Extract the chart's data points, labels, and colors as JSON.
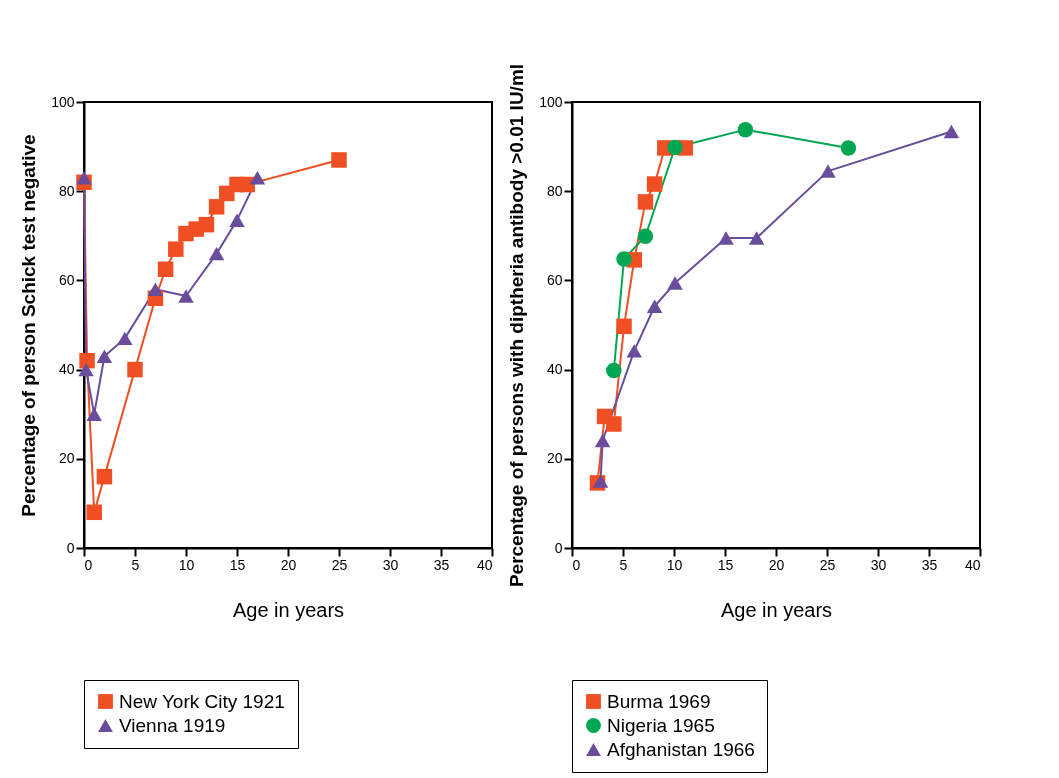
{
  "chart_data": [
    {
      "type": "line",
      "xlabel": "Age in years",
      "ylabel": "Percentage of person Schick test negative",
      "xlim": [
        0,
        40
      ],
      "xticks": [
        0,
        5,
        10,
        15,
        20,
        25,
        30,
        35,
        40
      ],
      "ylim": [
        0,
        100
      ],
      "yticks": [
        0,
        20,
        40,
        60,
        80,
        100
      ],
      "grid": false,
      "legend": "bottom",
      "line_style": "solid",
      "series": [
        {
          "name": "New York City 1921",
          "color": "#f04e23",
          "marker": "square",
          "x": [
            0,
            0.3,
            1,
            2,
            5,
            7,
            8,
            9,
            10,
            11,
            12,
            13,
            14,
            15,
            16,
            25
          ],
          "values": [
            82,
            42,
            8,
            16,
            40,
            56,
            62.5,
            67,
            70.5,
            71.5,
            72.5,
            76.5,
            79.5,
            81.5,
            81.5,
            87
          ]
        },
        {
          "name": "Vienna 1919",
          "color": "#6a4c9c",
          "marker": "triangle",
          "x": [
            0,
            0.2,
            1,
            2,
            4,
            7,
            10,
            13,
            15,
            17
          ],
          "values": [
            83,
            40,
            30,
            43,
            47,
            58,
            56.5,
            66,
            73.5,
            83
          ]
        }
      ]
    },
    {
      "type": "line",
      "xlabel": "Age in years",
      "ylabel": "Percentage of persons with diptheria antibody >0.01 IU/ml",
      "xlim": [
        0,
        40
      ],
      "xticks": [
        0,
        5,
        10,
        15,
        20,
        25,
        30,
        35,
        40
      ],
      "ylim": [
        0,
        100
      ],
      "yticks": [
        0,
        20,
        40,
        60,
        80,
        100
      ],
      "grid": false,
      "legend": "bottom",
      "line_style": "solid",
      "series": [
        {
          "name": "Burma 1969",
          "color": "#f04e23",
          "marker": "square",
          "x": [
            2.5,
            3.2,
            4.1,
            5.1,
            6.1,
            7.2,
            8.1,
            9.1,
            11.1
          ],
          "values": [
            14.6,
            29.5,
            27.8,
            49.7,
            64.6,
            77.6,
            81.6,
            89.7,
            89.7
          ]
        },
        {
          "name": "Nigeria 1965",
          "color": "#00a651",
          "marker": "circle",
          "x": [
            4.1,
            5.1,
            7.2,
            10.1,
            17,
            27.1
          ],
          "values": [
            39.8,
            64.8,
            69.9,
            89.8,
            93.8,
            89.7
          ]
        },
        {
          "name": "Afghanistan 1966",
          "color": "#6a4c9c",
          "marker": "triangle",
          "x": [
            2.8,
            3,
            6.1,
            8.1,
            10.1,
            15.1,
            18.1,
            25.1,
            37.2
          ],
          "values": [
            15,
            24.1,
            44.2,
            54.2,
            59.4,
            69.5,
            69.5,
            84.5,
            93.4
          ]
        }
      ]
    }
  ]
}
